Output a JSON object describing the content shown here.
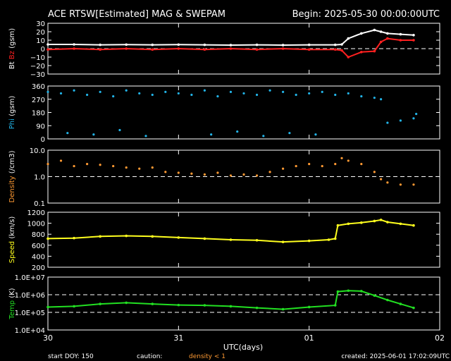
{
  "header": {
    "title": "ACE RTSW[Estimated] MAG & SWEPAM",
    "begin": "Begin: 2025-05-30 00:00:00UTC"
  },
  "footer": {
    "start_doy": "start DOY: 150",
    "caution": "caution:",
    "density_note": "density < 1",
    "created": "created: 2025-06-01 17:02:09UTC"
  },
  "colors": {
    "bt": "#ffffff",
    "bz": "#ff2020",
    "phi": "#22b4e8",
    "density": "#ff9a33",
    "speed": "#ffff1e",
    "temp": "#22e022",
    "axis": "#ffffff"
  },
  "chart_data": {
    "type": "scatter",
    "x_axis": {
      "label": "UTC(days)",
      "range_days": [
        0,
        3
      ],
      "ticks": [
        "30",
        "31",
        "01",
        "02"
      ]
    },
    "panels": [
      {
        "id": "mag",
        "ylabel_parts": [
          {
            "text": "Bt",
            "color": "#ffffff"
          },
          {
            "text": " Bz",
            "color": "#ff2020"
          },
          {
            "text": " (gsm)",
            "color": "#ffffff"
          }
        ],
        "ylim": [
          -30,
          30
        ],
        "scale": "linear",
        "ticks": [
          30,
          20,
          10,
          0,
          -10,
          -20,
          -30
        ],
        "tick_labels": [
          "30",
          "20",
          "10",
          "0",
          "−10",
          "−20",
          "−30"
        ],
        "ref_lines": [
          0
        ],
        "series": [
          {
            "name": "Bt",
            "color": "#ffffff",
            "style": "line",
            "points": [
              [
                0,
                5
              ],
              [
                0.2,
                5
              ],
              [
                0.4,
                4.5
              ],
              [
                0.6,
                4.8
              ],
              [
                0.8,
                4.5
              ],
              [
                1.0,
                4.8
              ],
              [
                1.2,
                4.5
              ],
              [
                1.4,
                4.2
              ],
              [
                1.6,
                4.5
              ],
              [
                1.8,
                4.2
              ],
              [
                2.0,
                4.5
              ],
              [
                2.2,
                4.5
              ],
              [
                2.25,
                5
              ],
              [
                2.3,
                12
              ],
              [
                2.4,
                18
              ],
              [
                2.5,
                22
              ],
              [
                2.55,
                20
              ],
              [
                2.6,
                18
              ],
              [
                2.7,
                17
              ],
              [
                2.8,
                16
              ]
            ]
          },
          {
            "name": "Bz",
            "color": "#ff2020",
            "style": "line",
            "points": [
              [
                0,
                -1
              ],
              [
                0.2,
                0
              ],
              [
                0.4,
                -1
              ],
              [
                0.6,
                0
              ],
              [
                0.8,
                -1
              ],
              [
                1.0,
                0
              ],
              [
                1.2,
                -1
              ],
              [
                1.4,
                0
              ],
              [
                1.6,
                -1
              ],
              [
                1.8,
                0
              ],
              [
                2.0,
                -1
              ],
              [
                2.2,
                -1
              ],
              [
                2.25,
                -2
              ],
              [
                2.3,
                -10
              ],
              [
                2.4,
                -4
              ],
              [
                2.5,
                -3
              ],
              [
                2.55,
                8
              ],
              [
                2.6,
                12
              ],
              [
                2.7,
                10
              ],
              [
                2.8,
                10
              ]
            ]
          }
        ]
      },
      {
        "id": "phi",
        "ylabel_parts": [
          {
            "text": "Phi",
            "color": "#22b4e8"
          },
          {
            "text": " (gsm)",
            "color": "#ffffff"
          }
        ],
        "ylim": [
          0,
          360
        ],
        "scale": "linear",
        "ticks": [
          360,
          270,
          180,
          90,
          0
        ],
        "tick_labels": [
          "360",
          "270",
          "180",
          "90",
          "0"
        ],
        "ref_lines": [],
        "series": [
          {
            "name": "Phi",
            "color": "#22b4e8",
            "style": "points",
            "points": [
              [
                0.0,
                320
              ],
              [
                0.1,
                310
              ],
              [
                0.2,
                330
              ],
              [
                0.3,
                300
              ],
              [
                0.4,
                320
              ],
              [
                0.5,
                290
              ],
              [
                0.6,
                330
              ],
              [
                0.7,
                310
              ],
              [
                0.8,
                300
              ],
              [
                0.9,
                320
              ],
              [
                1.0,
                310
              ],
              [
                1.1,
                300
              ],
              [
                1.2,
                330
              ],
              [
                1.3,
                290
              ],
              [
                1.4,
                320
              ],
              [
                1.5,
                310
              ],
              [
                1.6,
                300
              ],
              [
                1.7,
                330
              ],
              [
                1.8,
                320
              ],
              [
                1.9,
                300
              ],
              [
                2.0,
                310
              ],
              [
                2.1,
                320
              ],
              [
                2.2,
                300
              ],
              [
                2.3,
                310
              ],
              [
                2.4,
                290
              ],
              [
                2.5,
                280
              ],
              [
                2.55,
                270
              ],
              [
                0.15,
                40
              ],
              [
                0.35,
                30
              ],
              [
                0.55,
                60
              ],
              [
                0.75,
                20
              ],
              [
                1.25,
                30
              ],
              [
                1.45,
                50
              ],
              [
                1.65,
                20
              ],
              [
                1.85,
                40
              ],
              [
                2.05,
                30
              ],
              [
                2.6,
                110
              ],
              [
                2.7,
                125
              ],
              [
                2.8,
                140
              ],
              [
                2.82,
                170
              ]
            ]
          }
        ]
      },
      {
        "id": "density",
        "ylabel_parts": [
          {
            "text": "Density",
            "color": "#ff9a33"
          },
          {
            "text": " (/cm3)",
            "color": "#ffffff"
          }
        ],
        "ylim": [
          0.1,
          10
        ],
        "scale": "log",
        "ticks": [
          10,
          1,
          0.1
        ],
        "tick_labels": [
          "10.0",
          "1.0",
          "0.1"
        ],
        "ref_lines": [
          1
        ],
        "series": [
          {
            "name": "Density",
            "color": "#ff9a33",
            "style": "points",
            "points": [
              [
                0.0,
                3
              ],
              [
                0.1,
                4
              ],
              [
                0.2,
                2.5
              ],
              [
                0.3,
                3
              ],
              [
                0.4,
                2.8
              ],
              [
                0.5,
                2.5
              ],
              [
                0.6,
                2.2
              ],
              [
                0.7,
                2
              ],
              [
                0.8,
                2.2
              ],
              [
                0.9,
                1.5
              ],
              [
                1.0,
                1.4
              ],
              [
                1.1,
                1.3
              ],
              [
                1.2,
                1.2
              ],
              [
                1.3,
                1.4
              ],
              [
                1.4,
                1.1
              ],
              [
                1.5,
                1.2
              ],
              [
                1.6,
                1.1
              ],
              [
                1.7,
                1.5
              ],
              [
                1.8,
                2
              ],
              [
                1.9,
                2.5
              ],
              [
                2.0,
                3
              ],
              [
                2.1,
                2.5
              ],
              [
                2.2,
                3
              ],
              [
                2.25,
                5
              ],
              [
                2.3,
                4
              ],
              [
                2.4,
                3
              ],
              [
                2.5,
                1.5
              ],
              [
                2.55,
                0.8
              ],
              [
                2.6,
                0.6
              ],
              [
                2.7,
                0.5
              ],
              [
                2.8,
                0.5
              ]
            ]
          }
        ]
      },
      {
        "id": "speed",
        "ylabel_parts": [
          {
            "text": "Speed",
            "color": "#ffff1e"
          },
          {
            "text": " (km/s)",
            "color": "#ffffff"
          }
        ],
        "ylim": [
          200,
          1200
        ],
        "scale": "linear",
        "ticks": [
          1200,
          1000,
          800,
          600,
          400,
          200
        ],
        "tick_labels": [
          "1200",
          "1000",
          "800",
          "600",
          "400",
          "200"
        ],
        "ref_lines": [],
        "series": [
          {
            "name": "Speed",
            "color": "#ffff1e",
            "style": "line",
            "points": [
              [
                0,
                720
              ],
              [
                0.2,
                730
              ],
              [
                0.4,
                760
              ],
              [
                0.6,
                770
              ],
              [
                0.8,
                760
              ],
              [
                1.0,
                740
              ],
              [
                1.2,
                720
              ],
              [
                1.4,
                700
              ],
              [
                1.6,
                690
              ],
              [
                1.8,
                660
              ],
              [
                2.0,
                680
              ],
              [
                2.15,
                700
              ],
              [
                2.2,
                720
              ],
              [
                2.22,
                960
              ],
              [
                2.3,
                990
              ],
              [
                2.4,
                1010
              ],
              [
                2.5,
                1040
              ],
              [
                2.55,
                1060
              ],
              [
                2.6,
                1020
              ],
              [
                2.7,
                990
              ],
              [
                2.8,
                960
              ]
            ]
          }
        ]
      },
      {
        "id": "temp",
        "ylabel_parts": [
          {
            "text": "Temp",
            "color": "#22e022"
          },
          {
            "text": " (K)",
            "color": "#ffffff"
          }
        ],
        "ylim": [
          10000,
          10000000
        ],
        "scale": "log",
        "ticks": [
          10000000,
          1000000,
          100000,
          10000
        ],
        "tick_labels": [
          "1.0E+07",
          "1.0E+06",
          "1.0E+05",
          "1.0E+04"
        ],
        "ref_lines": [
          1000000,
          100000
        ],
        "series": [
          {
            "name": "Temp",
            "color": "#22e022",
            "style": "line",
            "points": [
              [
                0,
                200000
              ],
              [
                0.2,
                220000
              ],
              [
                0.4,
                300000
              ],
              [
                0.6,
                350000
              ],
              [
                0.8,
                300000
              ],
              [
                1.0,
                260000
              ],
              [
                1.2,
                250000
              ],
              [
                1.4,
                220000
              ],
              [
                1.6,
                180000
              ],
              [
                1.8,
                150000
              ],
              [
                2.0,
                200000
              ],
              [
                2.2,
                250000
              ],
              [
                2.22,
                1500000
              ],
              [
                2.3,
                1700000
              ],
              [
                2.4,
                1600000
              ],
              [
                2.5,
                900000
              ],
              [
                2.6,
                500000
              ],
              [
                2.7,
                300000
              ],
              [
                2.8,
                180000
              ]
            ]
          }
        ]
      }
    ]
  }
}
